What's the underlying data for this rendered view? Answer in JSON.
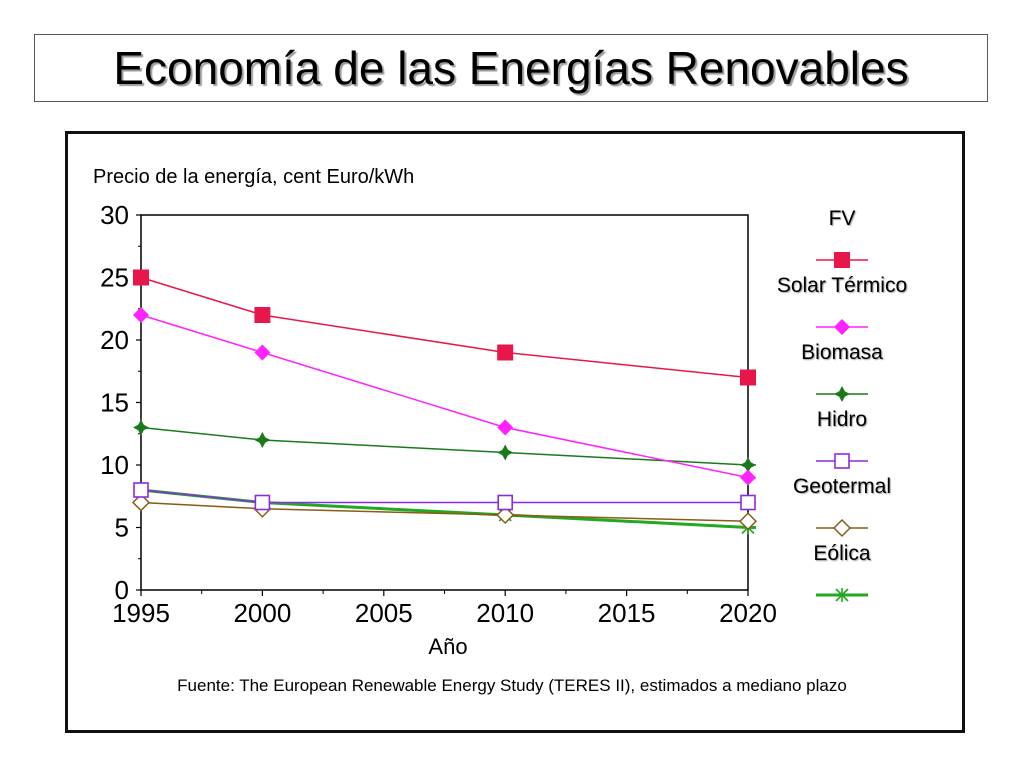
{
  "title": "Economía de las Energías Renovables",
  "chart_data": {
    "type": "line",
    "ylabel": "Precio de la energía, cent Euro/kWh",
    "xlabel": "Año",
    "source": "Fuente: The European Renewable Energy Study (TERES II), estimados a mediano plazo",
    "x": [
      1995,
      2000,
      2010,
      2020
    ],
    "xlim": [
      1995,
      2020
    ],
    "ylim": [
      0,
      30
    ],
    "xticks": [
      1995,
      2000,
      2005,
      2010,
      2015,
      2020
    ],
    "yticks": [
      0,
      5,
      10,
      15,
      20,
      25,
      30
    ],
    "grid": false,
    "legend_position": "right",
    "series": [
      {
        "name": "FV",
        "values": [
          25,
          22,
          19,
          17
        ],
        "color": "#e8174b",
        "marker": "square-filled"
      },
      {
        "name": "Solar Térmico",
        "values": [
          22,
          19,
          13,
          9
        ],
        "color": "#ff22ff",
        "marker": "diamond-filled"
      },
      {
        "name": "Biomasa",
        "values": [
          13,
          12,
          11,
          10
        ],
        "color": "#1a7a1a",
        "marker": "star-filled"
      },
      {
        "name": "Hidro",
        "values": [
          8,
          7,
          7,
          7
        ],
        "color": "#8a2be2",
        "marker": "square-open"
      },
      {
        "name": "Geotermal",
        "values": [
          7,
          6.5,
          6,
          5.5
        ],
        "color": "#8b5a14",
        "marker": "diamond-open"
      },
      {
        "name": "Eólica",
        "values": [
          8,
          7,
          6,
          5
        ],
        "color": "#22a822",
        "marker": "asterisk"
      }
    ]
  }
}
